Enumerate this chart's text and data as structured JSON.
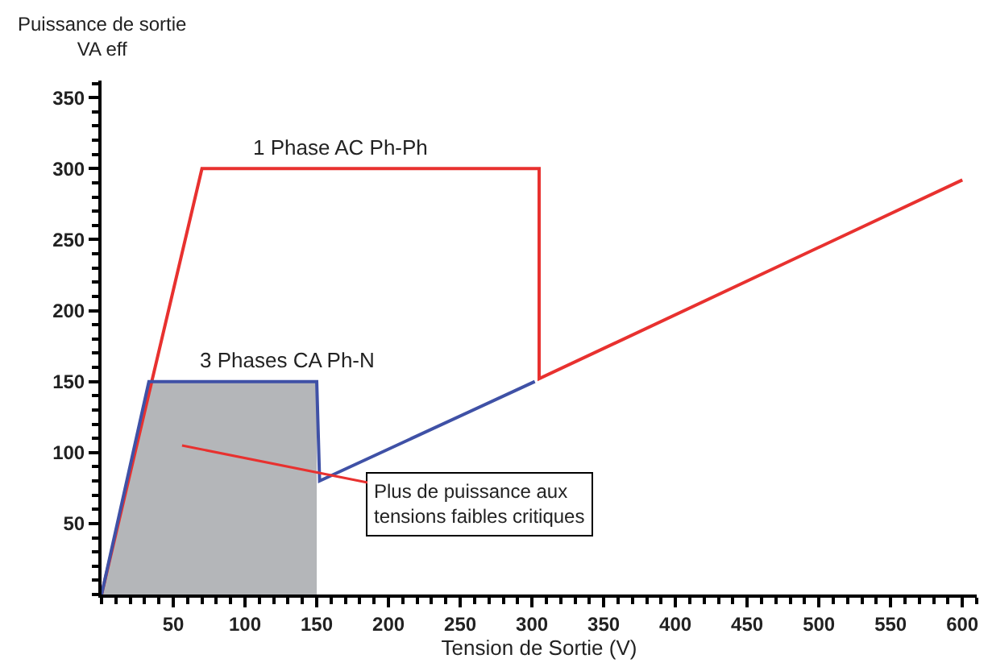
{
  "chart_data": {
    "type": "line",
    "xlabel": "Tension de Sortie (V)",
    "ylabel": "Puissance de sortie\nVA eff",
    "xlim": [
      0,
      610
    ],
    "ylim": [
      0,
      362
    ],
    "xticks": [
      50,
      100,
      150,
      200,
      250,
      300,
      350,
      400,
      450,
      500,
      550,
      600
    ],
    "yticks": [
      50,
      100,
      150,
      200,
      250,
      300,
      350
    ],
    "series": [
      {
        "type": "area",
        "color": "#b4b6b9",
        "x": [
          0,
          33,
          150,
          150
        ],
        "values": [
          0,
          150,
          150,
          0
        ]
      },
      {
        "name": "1 Phase AC Ph-Ph",
        "color": "#e8312f",
        "x": [
          0,
          70,
          305,
          305,
          600
        ],
        "values": [
          0,
          300,
          300,
          152,
          292
        ]
      },
      {
        "name": "3 Phases CA Ph-N",
        "color": "#3f51a6",
        "x": [
          0,
          33,
          150,
          152,
          302
        ],
        "values": [
          0,
          150,
          150,
          80,
          150
        ]
      }
    ],
    "annotations": [
      "Plus de puissance aux\ntensions faibles critiques"
    ],
    "grid": false,
    "legend": false,
    "marker": "none",
    "line_style": "solid"
  }
}
